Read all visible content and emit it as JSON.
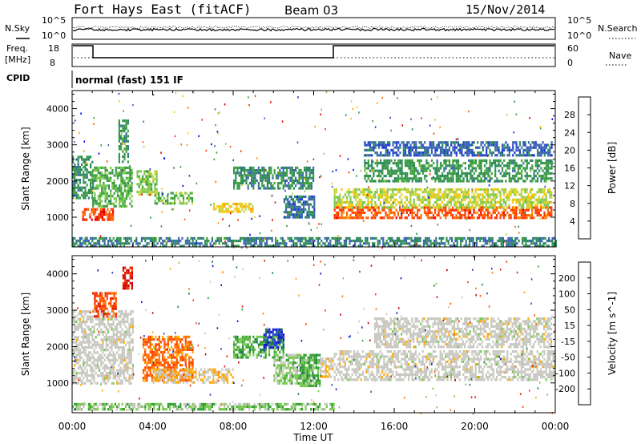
{
  "header": {
    "title": "Fort Hays East (fitACF)",
    "beam": "Beam 03",
    "date": "15/Nov/2014"
  },
  "aux": {
    "nsky_label": "N.Sky",
    "nsky_ticks": [
      "10^5",
      "10^0"
    ],
    "nsearch_label": "N.Search",
    "nsearch_ticks": [
      "10^5",
      "10^0"
    ],
    "freq_label_1": "Freq.",
    "freq_label_2": "[MHz]",
    "freq_ticks": [
      "18",
      "8"
    ],
    "nave_label": "Nave",
    "nave_ticks": [
      "60",
      "0"
    ],
    "cpid_label": "CPID",
    "cpid_text": "normal (fast) 151 IF"
  },
  "colors": {
    "power_scale": [
      "#0000ff",
      "#1e3cd2",
      "#3c64b4",
      "#2e8a5a",
      "#3ca03c",
      "#7dc850",
      "#c8d23c",
      "#ffc800",
      "#ffa000",
      "#ff6400",
      "#ff3200",
      "#e60000"
    ],
    "velocity_scale": [
      "#1414c8",
      "#2846c8",
      "#1e7850",
      "#32a032",
      "#78c850",
      "#c8c8c0",
      "#c8c8c0",
      "#ffaa00",
      "#ff7800",
      "#ff4600",
      "#e61e00",
      "#c80000"
    ]
  },
  "chart_data": [
    {
      "type": "heatmap",
      "name": "power",
      "xlabel": "",
      "ylabel": "Slant Range [km]",
      "x_ticks": [
        "00:00",
        "04:00",
        "08:00",
        "12:00",
        "16:00",
        "20:00",
        "00:00"
      ],
      "y_ticks": [
        "1000",
        "2000",
        "3000",
        "4000"
      ],
      "xlim": [
        0,
        24
      ],
      "ylim": [
        180,
        4500
      ],
      "colorbar_label": "Power [dB]",
      "colorbar_ticks": [
        "28",
        "24",
        "20",
        "16",
        "12",
        "8",
        "4"
      ],
      "colorbar_range": [
        0,
        30
      ],
      "regions": [
        {
          "t": [
            0.0,
            1.0
          ],
          "r": [
            1500,
            2700
          ],
          "v": 9
        },
        {
          "t": [
            0.5,
            2.0
          ],
          "r": [
            950,
            1250
          ],
          "v": 26
        },
        {
          "t": [
            1.0,
            3.0
          ],
          "r": [
            1300,
            2400
          ],
          "v": 12
        },
        {
          "t": [
            2.3,
            2.8
          ],
          "r": [
            2500,
            3700
          ],
          "v": 10
        },
        {
          "t": [
            3.2,
            4.2
          ],
          "r": [
            1600,
            2300
          ],
          "v": 14
        },
        {
          "t": [
            4.0,
            6.0
          ],
          "r": [
            1400,
            1700
          ],
          "v": 13
        },
        {
          "t": [
            7.0,
            9.0
          ],
          "r": [
            1150,
            1400
          ],
          "v": 18
        },
        {
          "t": [
            8.0,
            12.0
          ],
          "r": [
            1800,
            2400
          ],
          "v": 9
        },
        {
          "t": [
            10.5,
            12.0
          ],
          "r": [
            1000,
            1600
          ],
          "v": 7
        },
        {
          "t": [
            13.0,
            23.8
          ],
          "r": [
            1000,
            1300
          ],
          "v": 25
        },
        {
          "t": [
            13.0,
            23.8
          ],
          "r": [
            1300,
            1800
          ],
          "v": 16
        },
        {
          "t": [
            14.5,
            23.8
          ],
          "r": [
            2000,
            2600
          ],
          "v": 10
        },
        {
          "t": [
            14.5,
            23.8
          ],
          "r": [
            2700,
            3100
          ],
          "v": 6
        },
        {
          "t": [
            0.0,
            24.0
          ],
          "r": [
            200,
            450
          ],
          "v": 8
        }
      ]
    },
    {
      "type": "heatmap",
      "name": "velocity",
      "xlabel": "Time UT",
      "ylabel": "Slant Range [km]",
      "x_ticks": [
        "00:00",
        "04:00",
        "08:00",
        "12:00",
        "16:00",
        "20:00",
        "00:00"
      ],
      "y_ticks": [
        "1000",
        "2000",
        "3000",
        "4000"
      ],
      "xlim": [
        0,
        24
      ],
      "ylim": [
        180,
        4500
      ],
      "colorbar_label": "Velocity [m s^-1]",
      "colorbar_ticks": [
        "200",
        "100",
        "50",
        "15",
        "-15",
        "-50",
        "-100",
        "-200"
      ],
      "colorbar_range": [
        -250,
        250
      ],
      "regions": [
        {
          "t": [
            0.0,
            3.0
          ],
          "r": [
            1000,
            3000
          ],
          "v": 0
        },
        {
          "t": [
            1.0,
            2.2
          ],
          "r": [
            2800,
            3500
          ],
          "v": 150
        },
        {
          "t": [
            2.5,
            3.0
          ],
          "r": [
            3600,
            4200
          ],
          "v": 200
        },
        {
          "t": [
            3.5,
            6.0
          ],
          "r": [
            1100,
            2300
          ],
          "v": 120
        },
        {
          "t": [
            4.0,
            8.0
          ],
          "r": [
            1000,
            1400
          ],
          "v": 40
        },
        {
          "t": [
            8.0,
            10.5
          ],
          "r": [
            1700,
            2300
          ],
          "v": -90
        },
        {
          "t": [
            9.5,
            10.5
          ],
          "r": [
            2000,
            2500
          ],
          "v": -200
        },
        {
          "t": [
            10.0,
            12.0
          ],
          "r": [
            1000,
            1800
          ],
          "v": -50
        },
        {
          "t": [
            11.3,
            12.3
          ],
          "r": [
            900,
            1800
          ],
          "v": -100
        },
        {
          "t": [
            12.3,
            13.0
          ],
          "r": [
            1200,
            1700
          ],
          "v": 30
        },
        {
          "t": [
            13.0,
            24.0
          ],
          "r": [
            1100,
            1900
          ],
          "v": 0
        },
        {
          "t": [
            15.0,
            23.8
          ],
          "r": [
            2000,
            2800
          ],
          "v": 0
        },
        {
          "t": [
            0.0,
            13.0
          ],
          "r": [
            250,
            450
          ],
          "v": -60
        }
      ]
    }
  ]
}
